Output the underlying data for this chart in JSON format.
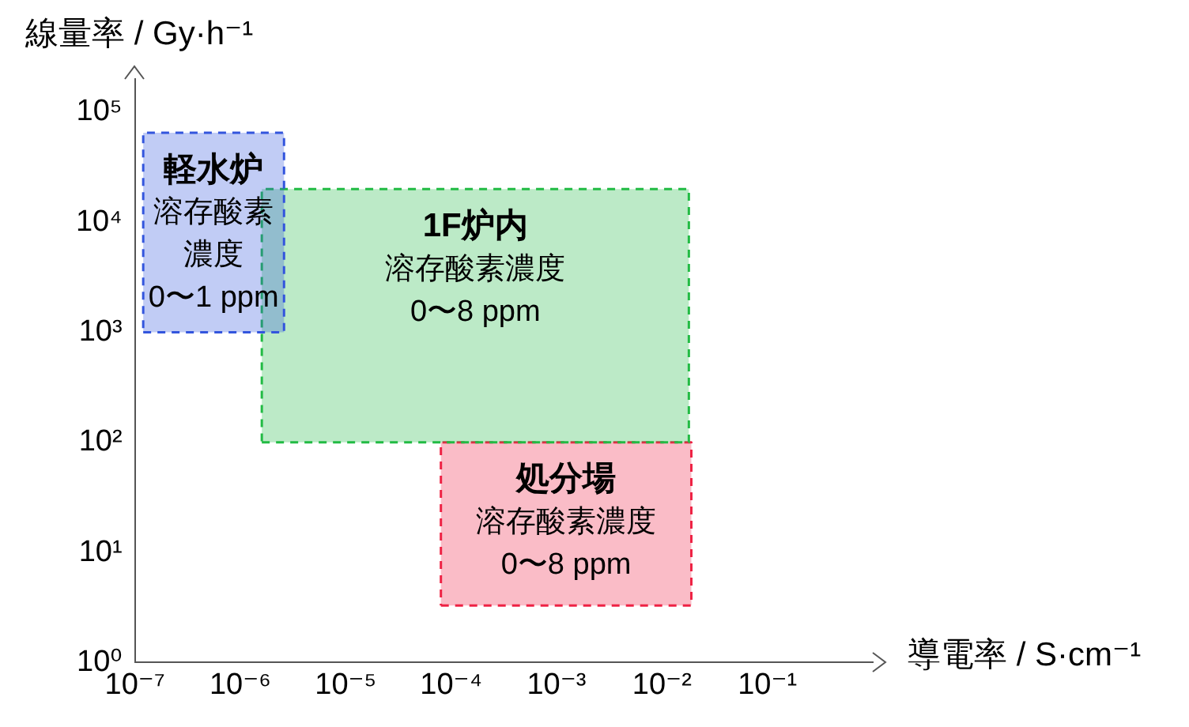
{
  "chart_data": {
    "type": "area",
    "xlabel": "導電率 / S·cm⁻¹",
    "ylabel": "線量率 / Gy·h⁻¹",
    "log": "xy",
    "grid": false,
    "legend": false,
    "marker": "none",
    "line_style": "dashed",
    "xlim": [
      1e-07,
      1
    ],
    "ylim": [
      1,
      200000.0
    ],
    "xticks": [
      {
        "value": 1e-07,
        "label": "10⁻⁷"
      },
      {
        "value": 1e-06,
        "label": "10⁻⁶"
      },
      {
        "value": 1e-05,
        "label": "10⁻⁵"
      },
      {
        "value": 0.0001,
        "label": "10⁻⁴"
      },
      {
        "value": 0.001,
        "label": "10⁻³"
      },
      {
        "value": 0.01,
        "label": "10⁻²"
      },
      {
        "value": 0.1,
        "label": "10⁻¹"
      }
    ],
    "yticks": [
      {
        "value": 1,
        "label": "10⁰"
      },
      {
        "value": 10,
        "label": "10¹"
      },
      {
        "value": 100,
        "label": "10²"
      },
      {
        "value": 1000,
        "label": "10³"
      },
      {
        "value": 10000,
        "label": "10⁴"
      },
      {
        "value": 100000,
        "label": "10⁵"
      }
    ],
    "series": [
      {
        "name": "軽水炉",
        "color": "#3355dd",
        "x": [
          1.2e-07,
          2.6e-06,
          2.6e-06,
          1.2e-07,
          1.2e-07
        ],
        "values": [
          1000,
          1000,
          65000,
          65000,
          1000
        ]
      },
      {
        "name": "1F炉内",
        "color": "#22bb44",
        "x": [
          1.6e-06,
          0.018,
          0.018,
          1.6e-06,
          1.6e-06
        ],
        "values": [
          100,
          100,
          20000,
          20000,
          100
        ]
      },
      {
        "name": "処分場",
        "color": "#ee2244",
        "x": [
          8e-05,
          0.019,
          0.019,
          8e-05,
          8e-05
        ],
        "values": [
          3.3,
          3.3,
          100,
          100,
          3.3
        ]
      }
    ],
    "annotations": [
      "溶存酸素濃度\n0〜1 ppm",
      "溶存酸素濃度\n0〜8 ppm",
      "溶存酸素濃度\n0〜8 ppm"
    ]
  }
}
